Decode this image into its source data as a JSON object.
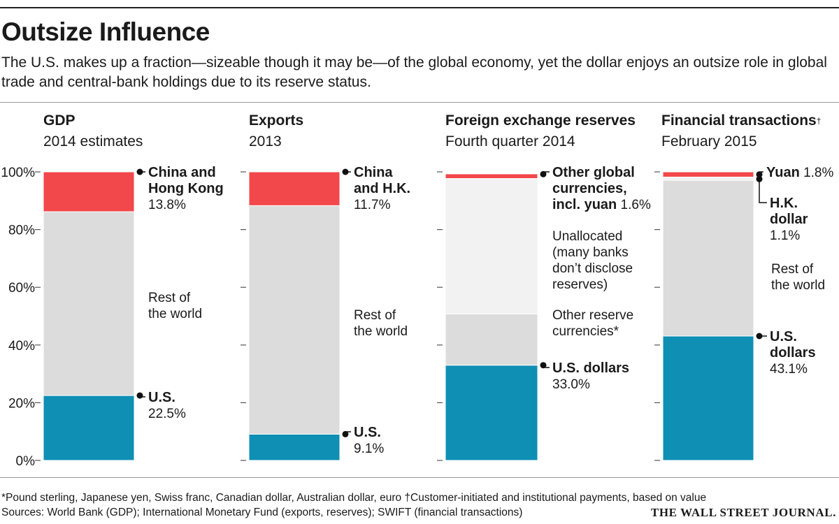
{
  "header": {
    "title": "Outsize Influence",
    "subtitle": "The U.S. makes up a fraction—sizeable though it may be—of the global economy, yet the dollar enjoys an outsize role in global trade and central-bank holdings due to its reserve status."
  },
  "colors": {
    "red": "#f2474b",
    "gray": "#dcdcdc",
    "light_gray": "#ececec",
    "blue": "#0f8fb4",
    "pale_gray": "#f2f2f2"
  },
  "chart_data": {
    "type": "bar",
    "stacked": true,
    "ylim": [
      0,
      100
    ],
    "yticks": [
      "0%",
      "20%",
      "40%",
      "60%",
      "80%",
      "100%"
    ],
    "panels": [
      {
        "title": "GDP",
        "title_mark": "",
        "subtitle": "2014 estimates",
        "segments": [
          {
            "key": "us",
            "value": 22.5,
            "color": "blue"
          },
          {
            "key": "rest",
            "value": 63.7,
            "color": "gray"
          },
          {
            "key": "china",
            "value": 13.8,
            "color": "red"
          }
        ],
        "labels": [
          {
            "lines": [
              [
                "U.S.",
                ""
              ],
              [
                "",
                "22.5%"
              ]
            ],
            "marker": 22.5
          },
          {
            "lines": [
              [
                "",
                "Rest of"
              ],
              [
                "",
                "the world"
              ]
            ]
          },
          {
            "lines": [
              [
                "China and",
                ""
              ],
              [
                "Hong Kong",
                ""
              ],
              [
                "",
                "13.8%"
              ]
            ],
            "marker": 100
          }
        ]
      },
      {
        "title": "Exports",
        "title_mark": "",
        "subtitle": "2013",
        "segments": [
          {
            "key": "us",
            "value": 9.1,
            "color": "blue"
          },
          {
            "key": "rest",
            "value": 79.2,
            "color": "gray"
          },
          {
            "key": "china",
            "value": 11.7,
            "color": "red"
          }
        ],
        "labels": [
          {
            "lines": [
              [
                "U.S.",
                ""
              ],
              [
                "",
                "9.1%"
              ]
            ],
            "marker": 9.1
          },
          {
            "lines": [
              [
                "",
                "Rest of"
              ],
              [
                "",
                "the world"
              ]
            ]
          },
          {
            "lines": [
              [
                "China",
                ""
              ],
              [
                "and H.K.",
                ""
              ],
              [
                "",
                "11.7%"
              ]
            ],
            "marker": 100
          }
        ]
      },
      {
        "title": "Foreign exchange reserves",
        "title_mark": "",
        "subtitle": "Fourth quarter 2014",
        "segments": [
          {
            "key": "us",
            "value": 33.0,
            "color": "blue"
          },
          {
            "key": "other_reserve",
            "value": 17.8,
            "color": "gray"
          },
          {
            "key": "unallocated",
            "value": 46.9,
            "color": "pale_gray"
          },
          {
            "key": "other_global",
            "value": 1.6,
            "color": "red"
          }
        ],
        "labels": [
          {
            "lines": [
              [
                "U.S. dollars",
                ""
              ],
              [
                "",
                "33.0%"
              ]
            ],
            "marker": 33.0
          },
          {
            "lines": [
              [
                "",
                "Other reserve"
              ],
              [
                "",
                "currencies*"
              ]
            ]
          },
          {
            "lines": [
              [
                "",
                "Unallocated"
              ],
              [
                "",
                "(many banks"
              ],
              [
                "",
                "don’t disclose"
              ],
              [
                "",
                "reserves)"
              ]
            ]
          },
          {
            "lines": [
              [
                "Other global",
                ""
              ],
              [
                "currencies,",
                ""
              ],
              [
                "incl. yuan",
                " 1.6%"
              ]
            ],
            "marker": 99.2
          }
        ]
      },
      {
        "title": "Financial transactions",
        "title_mark": "†",
        "subtitle": "February 2015",
        "segments": [
          {
            "key": "us",
            "value": 43.1,
            "color": "blue"
          },
          {
            "key": "rest",
            "value": 54.0,
            "color": "gray"
          },
          {
            "key": "hk",
            "value": 1.1,
            "color": "pale_gray"
          },
          {
            "key": "yuan",
            "value": 1.8,
            "color": "red"
          }
        ],
        "labels": [
          {
            "lines": [
              [
                "U.S.",
                ""
              ],
              [
                "dollars",
                ""
              ],
              [
                "",
                "43.1%"
              ]
            ],
            "marker": 43.1
          },
          {
            "lines": [
              [
                "",
                "Rest of"
              ],
              [
                "",
                "the world"
              ]
            ]
          },
          {
            "lines": [
              [
                "H.K.",
                ""
              ],
              [
                "dollar",
                ""
              ],
              [
                "",
                "1.1%"
              ]
            ],
            "marker": 97.5
          },
          {
            "lines": [
              [
                "Yuan",
                " 1.8%"
              ]
            ],
            "marker": 99.1
          }
        ]
      }
    ]
  },
  "footnotes": {
    "line1": "*Pound sterling, Japanese yen, Swiss franc, Canadian dollar, Australian dollar, euro   †Customer-initiated and institutional payments, based on value",
    "line2": "Sources: World Bank (GDP); International Monetary Fund (exports, reserves); SWIFT (financial transactions)"
  },
  "logo": "THE WALL STREET JOURNAL."
}
